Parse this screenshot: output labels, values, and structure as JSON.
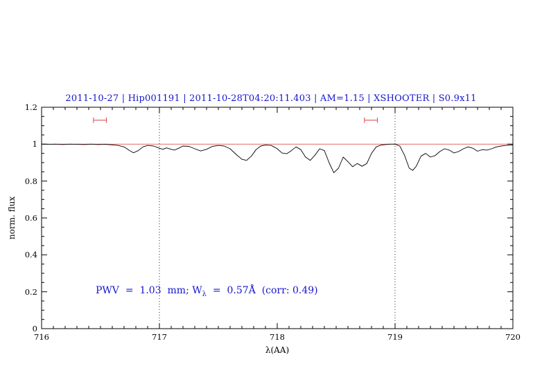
{
  "annotation": {
    "part1": "PWV  =  1.03  mm; W",
    "sub": "λ",
    "part2": "  =  0.57Å  (corr: 0.49)"
  },
  "colors": {
    "title_blue": "#1515cf",
    "annotation_blue": "#1515cf",
    "continuum_red": "#d55",
    "marker_red": "#d55",
    "spectrum_black": "#000000"
  },
  "chart_data": {
    "type": "line",
    "title": "2011-10-27 | Hip001191 | 2011-10-28T04:20:11.403 | AM=1.15 | XSHOOTER | S0.9x11",
    "xlabel": "λ(AA)",
    "ylabel": "norm. flux",
    "xlim": [
      716,
      720
    ],
    "ylim": [
      0,
      1.2
    ],
    "grid": "off",
    "legend": "none",
    "x_major_ticks": [
      716,
      717,
      718,
      719,
      720
    ],
    "x_tick_labels": [
      "716",
      "717",
      "718",
      "719",
      "720"
    ],
    "x_minor_step": 0.1,
    "y_major_ticks": [
      0,
      0.2,
      0.4,
      0.6,
      0.8,
      1,
      1.2
    ],
    "y_tick_labels": [
      "0",
      "0.2",
      "0.4",
      "0.6",
      "0.8",
      "1",
      "1.2"
    ],
    "y_minor_step": 0.05,
    "dotted_vlines": [
      717,
      719
    ],
    "continuum": {
      "y": 1.0
    },
    "telluric_markers": [
      {
        "x_min": 716.44,
        "x_max": 716.55,
        "y": 1.13
      },
      {
        "x_min": 718.74,
        "x_max": 718.85,
        "y": 1.13
      }
    ],
    "series": [
      {
        "name": "normalized spectrum",
        "x": [
          716.0,
          716.06,
          716.12,
          716.18,
          716.24,
          716.3,
          716.36,
          716.42,
          716.48,
          716.54,
          716.6,
          716.65,
          716.7,
          716.74,
          716.78,
          716.82,
          716.86,
          716.9,
          716.95,
          717.0,
          717.03,
          717.06,
          717.1,
          717.13,
          717.17,
          717.2,
          717.25,
          717.3,
          717.35,
          717.4,
          717.45,
          717.5,
          717.55,
          717.6,
          717.65,
          717.7,
          717.74,
          717.78,
          717.82,
          717.86,
          717.9,
          717.95,
          718.0,
          718.04,
          718.08,
          718.12,
          718.16,
          718.2,
          718.24,
          718.28,
          718.32,
          718.36,
          718.4,
          718.44,
          718.48,
          718.52,
          718.56,
          718.6,
          718.64,
          718.68,
          718.72,
          718.76,
          718.8,
          718.84,
          718.88,
          718.92,
          718.96,
          719.0,
          719.04,
          719.08,
          719.12,
          719.15,
          719.18,
          719.22,
          719.26,
          719.3,
          719.34,
          719.38,
          719.42,
          719.46,
          719.5,
          719.54,
          719.58,
          719.62,
          719.66,
          719.7,
          719.74,
          719.78,
          719.82,
          719.86,
          719.9,
          719.94,
          720.0
        ],
        "y": [
          1.0,
          0.999,
          1.0,
          0.998,
          1.0,
          0.999,
          0.998,
          1.0,
          0.998,
          0.999,
          0.996,
          0.993,
          0.985,
          0.968,
          0.953,
          0.965,
          0.985,
          0.993,
          0.99,
          0.978,
          0.972,
          0.98,
          0.972,
          0.968,
          0.98,
          0.99,
          0.988,
          0.975,
          0.963,
          0.972,
          0.988,
          0.993,
          0.99,
          0.975,
          0.945,
          0.918,
          0.912,
          0.935,
          0.97,
          0.99,
          0.995,
          0.993,
          0.975,
          0.952,
          0.948,
          0.965,
          0.985,
          0.97,
          0.93,
          0.912,
          0.94,
          0.975,
          0.965,
          0.9,
          0.845,
          0.87,
          0.93,
          0.905,
          0.878,
          0.895,
          0.88,
          0.895,
          0.95,
          0.985,
          0.995,
          0.998,
          1.0,
          1.0,
          0.99,
          0.94,
          0.87,
          0.858,
          0.88,
          0.935,
          0.95,
          0.93,
          0.938,
          0.96,
          0.975,
          0.968,
          0.952,
          0.96,
          0.975,
          0.985,
          0.978,
          0.962,
          0.97,
          0.968,
          0.975,
          0.985,
          0.99,
          0.993,
          0.995
        ]
      }
    ]
  }
}
